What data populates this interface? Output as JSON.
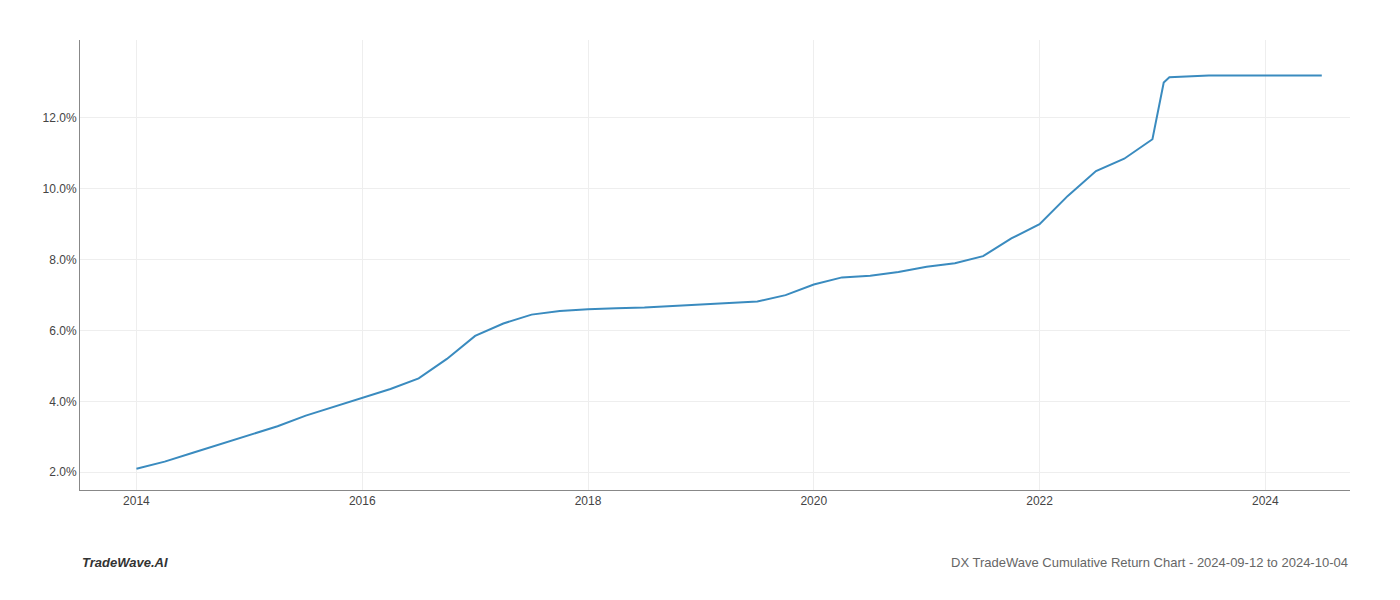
{
  "chart_data": {
    "type": "line",
    "x": [
      2014.0,
      2014.25,
      2014.5,
      2014.75,
      2015.0,
      2015.25,
      2015.5,
      2015.75,
      2016.0,
      2016.25,
      2016.5,
      2016.75,
      2017.0,
      2017.25,
      2017.5,
      2017.75,
      2018.0,
      2018.1,
      2018.25,
      2018.5,
      2018.75,
      2019.0,
      2019.25,
      2019.5,
      2019.75,
      2020.0,
      2020.25,
      2020.5,
      2020.75,
      2021.0,
      2021.25,
      2021.5,
      2021.75,
      2022.0,
      2022.25,
      2022.5,
      2022.75,
      2023.0,
      2023.1,
      2023.15,
      2023.5,
      2023.75,
      2024.0,
      2024.5
    ],
    "values": [
      2.1,
      2.3,
      2.55,
      2.8,
      3.05,
      3.3,
      3.6,
      3.85,
      4.1,
      4.35,
      4.65,
      5.2,
      5.85,
      6.2,
      6.45,
      6.55,
      6.6,
      6.62,
      6.63,
      6.65,
      6.7,
      6.75,
      6.78,
      6.82,
      7.0,
      7.3,
      7.5,
      7.55,
      7.65,
      7.8,
      7.9,
      8.1,
      8.6,
      9.0,
      9.8,
      10.5,
      10.85,
      11.4,
      13.0,
      13.15,
      13.2,
      13.2,
      13.2,
      13.2
    ],
    "color": "#3a8bbf",
    "xlim": [
      2013.5,
      2024.75
    ],
    "ylim": [
      1.5,
      14.2
    ],
    "xticks": [
      2014,
      2016,
      2018,
      2020,
      2022,
      2024
    ],
    "yticks": [
      {
        "value": 2.0,
        "label": "2.0%"
      },
      {
        "value": 4.0,
        "label": "4.0%"
      },
      {
        "value": 6.0,
        "label": "6.0%"
      },
      {
        "value": 8.0,
        "label": "8.0%"
      },
      {
        "value": 10.0,
        "label": "10.0%"
      },
      {
        "value": 12.0,
        "label": "12.0%"
      }
    ],
    "grid": true,
    "annotations": [
      "TradeWave.AI",
      "DX TradeWave Cumulative Return Chart - 2024-09-12 to 2024-10-04"
    ]
  }
}
